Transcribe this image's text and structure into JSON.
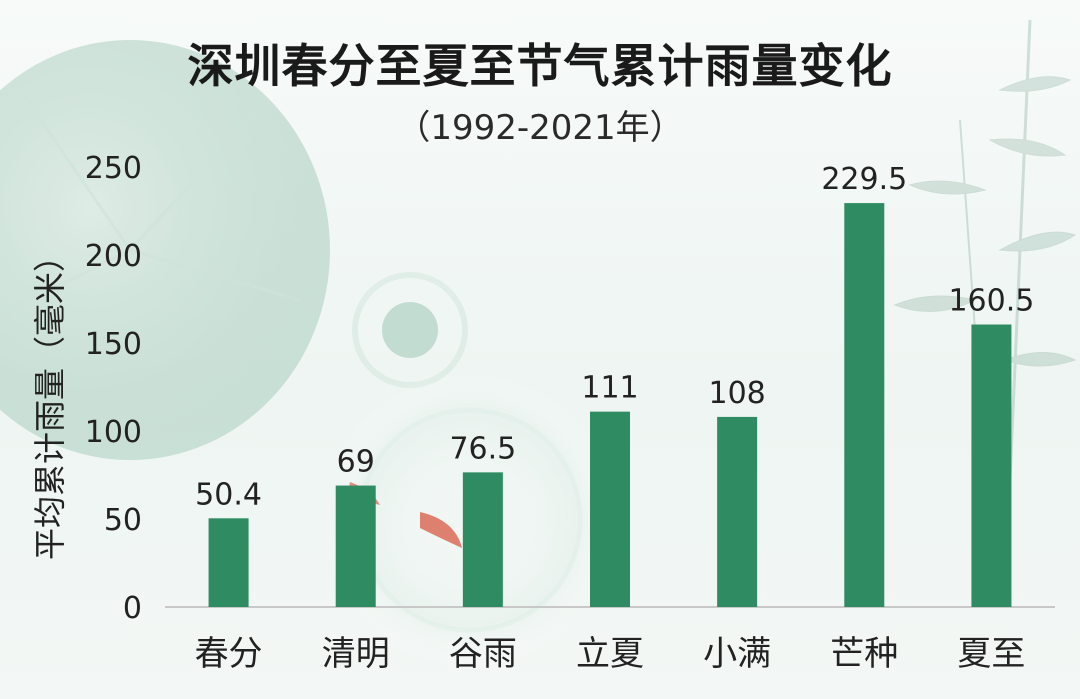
{
  "colors": {
    "bar": "#2e8b62",
    "axis": "#c8c8c8",
    "text": "#222222",
    "background": "#f4f8f6",
    "lotus_leaf": "#bcd9cc",
    "koi": "#d9634e"
  },
  "decor": {
    "lotus_leaf": "lotus-leaf-illustration",
    "bamboo": "bamboo-illustration",
    "koi": "koi-fish-illustration"
  },
  "chart_data": {
    "type": "bar",
    "title": "深圳春分至夏至节气累计雨量变化",
    "subtitle": "（1992-2021年）",
    "xlabel": "",
    "ylabel": "平均累计雨量（毫米）",
    "categories": [
      "春分",
      "清明",
      "谷雨",
      "立夏",
      "小满",
      "芒种",
      "夏至"
    ],
    "values": [
      50.4,
      69,
      76.5,
      111,
      108,
      229.5,
      160.5
    ],
    "value_labels": [
      "50.4",
      "69",
      "76.5",
      "111",
      "108",
      "229.5",
      "160.5"
    ],
    "ylim": [
      0,
      250
    ],
    "yticks": [
      0,
      50,
      100,
      150,
      200,
      250
    ],
    "grid": false,
    "legend": "none"
  }
}
